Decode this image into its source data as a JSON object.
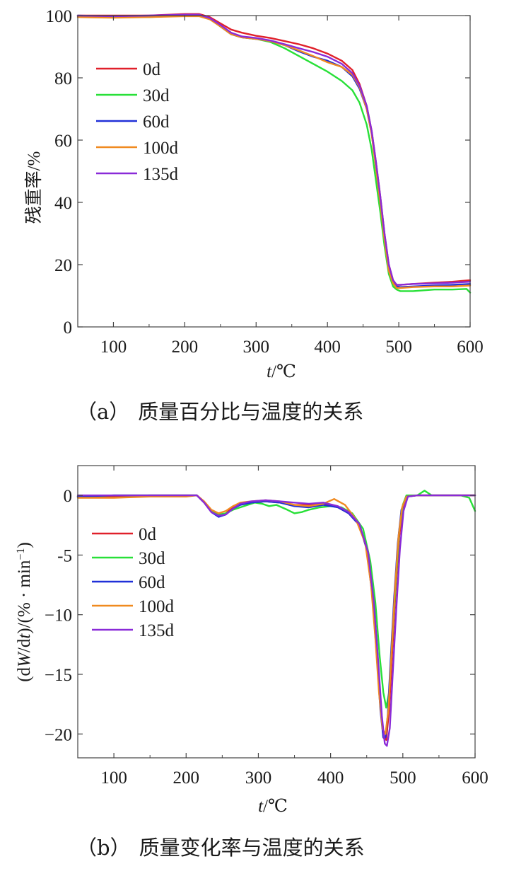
{
  "figure": {
    "panels": [
      {
        "caption_letter": "（a）",
        "caption_text": "质量百分比与温度的关系"
      },
      {
        "caption_letter": "（b）",
        "caption_text": "质量变化率与温度的关系"
      }
    ]
  },
  "chart_data": [
    {
      "type": "line",
      "xlabel_italic": "t",
      "xlabel_rest": "/℃",
      "ylabel": "残重率/%",
      "xlim": [
        50,
        600
      ],
      "ylim": [
        0,
        100
      ],
      "xticks": [
        100,
        200,
        300,
        400,
        500,
        600
      ],
      "yticks": [
        0,
        20,
        40,
        60,
        80,
        100
      ],
      "legend_position": "upper-left",
      "series": [
        {
          "name": "0d",
          "color": "#e0202a",
          "x": [
            50,
            100,
            150,
            200,
            220,
            235,
            250,
            265,
            280,
            300,
            320,
            340,
            360,
            380,
            400,
            420,
            435,
            445,
            455,
            462,
            468,
            474,
            480,
            486,
            492,
            497,
            502,
            520,
            550,
            575,
            600
          ],
          "y": [
            100,
            100,
            100,
            100.5,
            100.5,
            99.5,
            97.5,
            95.5,
            94.5,
            93.5,
            92.8,
            91.8,
            90.8,
            89.5,
            87.8,
            85.5,
            82.5,
            78,
            71,
            63,
            53,
            42,
            30,
            20,
            15,
            13.5,
            13.5,
            13.8,
            14.2,
            14.5,
            15
          ]
        },
        {
          "name": "30d",
          "color": "#28e038",
          "x": [
            50,
            100,
            150,
            200,
            220,
            235,
            250,
            265,
            280,
            300,
            320,
            340,
            360,
            380,
            400,
            420,
            435,
            445,
            455,
            462,
            468,
            474,
            480,
            486,
            492,
            497,
            502,
            520,
            550,
            575,
            595,
            600
          ],
          "y": [
            100,
            99.5,
            99.5,
            100,
            100,
            99,
            96.5,
            94,
            93,
            92.5,
            91.5,
            89.5,
            87,
            84.5,
            82,
            79,
            76,
            72,
            65,
            57,
            47,
            37,
            26,
            17,
            13,
            12,
            11.5,
            11.5,
            12,
            12,
            12.2,
            11
          ]
        },
        {
          "name": "60d",
          "color": "#2030d8",
          "x": [
            50,
            100,
            150,
            200,
            220,
            235,
            250,
            265,
            280,
            300,
            320,
            340,
            360,
            380,
            400,
            420,
            435,
            445,
            455,
            462,
            468,
            474,
            480,
            486,
            492,
            497,
            502,
            520,
            550,
            575,
            600
          ],
          "y": [
            99.8,
            99.8,
            99.8,
            100,
            100,
            99,
            96.5,
            94,
            93,
            92.5,
            91.8,
            90.5,
            88.5,
            86.8,
            85.5,
            83.5,
            80.5,
            76.5,
            70,
            62,
            52,
            41,
            29,
            19,
            14.5,
            13,
            12.8,
            13,
            13.3,
            13.5,
            13.8
          ]
        },
        {
          "name": "100d",
          "color": "#f08a20",
          "x": [
            50,
            100,
            150,
            200,
            220,
            235,
            250,
            265,
            280,
            300,
            320,
            340,
            360,
            380,
            400,
            420,
            435,
            445,
            455,
            462,
            468,
            474,
            480,
            486,
            492,
            497,
            502,
            520,
            550,
            575,
            600
          ],
          "y": [
            99.5,
            99.3,
            99.5,
            99.8,
            99.8,
            98.8,
            96.5,
            94,
            93,
            92.5,
            91.8,
            90.5,
            88.8,
            87,
            85,
            83.5,
            81,
            77,
            70,
            62,
            51,
            40,
            28,
            18,
            14,
            12.5,
            12.5,
            12.8,
            13,
            13,
            13.3
          ]
        },
        {
          "name": "135d",
          "color": "#8a2ad8",
          "x": [
            50,
            100,
            150,
            200,
            220,
            235,
            250,
            265,
            280,
            300,
            320,
            340,
            360,
            380,
            400,
            420,
            435,
            445,
            455,
            462,
            468,
            474,
            480,
            486,
            492,
            497,
            502,
            520,
            550,
            575,
            600
          ],
          "y": [
            100,
            99.8,
            100,
            100.3,
            100.3,
            99.2,
            97,
            94.5,
            93.3,
            92.8,
            92,
            90.8,
            89.5,
            88.3,
            86.8,
            84.5,
            81.5,
            77.5,
            71,
            63,
            53,
            42,
            30,
            20,
            15,
            13.5,
            13.5,
            13.8,
            14,
            14.2,
            14.5
          ]
        }
      ]
    },
    {
      "type": "line",
      "xlabel_italic": "t",
      "xlabel_rest": "/℃",
      "ylabel_parts": [
        {
          "t": "(d",
          "i": false
        },
        {
          "t": "W",
          "i": true
        },
        {
          "t": "/d",
          "i": false
        },
        {
          "t": "t",
          "i": true
        },
        {
          "t": ")/(% · min",
          "i": false
        },
        {
          "t": "−1",
          "i": false,
          "sup": true
        },
        {
          "t": ")",
          "i": false
        }
      ],
      "xlim": [
        50,
        600
      ],
      "ylim": [
        -22,
        2.5
      ],
      "xticks": [
        100,
        200,
        300,
        400,
        500,
        600
      ],
      "yticks": [
        0,
        -5,
        -10,
        -15,
        -20
      ],
      "ytick_labels": [
        "0",
        "-5",
        "−10",
        "−15",
        "−20"
      ],
      "legend_position": "middle-left",
      "series": [
        {
          "name": "0d",
          "color": "#e0202a",
          "x": [
            50,
            100,
            150,
            200,
            215,
            225,
            235,
            245,
            255,
            265,
            275,
            290,
            310,
            330,
            350,
            370,
            390,
            410,
            425,
            440,
            450,
            458,
            464,
            469,
            473,
            477,
            481,
            485,
            490,
            495,
            500,
            505,
            520,
            550,
            580,
            600
          ],
          "y": [
            -0.1,
            -0.1,
            0,
            0,
            0,
            -0.6,
            -1.4,
            -1.7,
            -1.5,
            -1.0,
            -0.7,
            -0.6,
            -0.5,
            -0.6,
            -0.8,
            -0.8,
            -0.7,
            -1.0,
            -1.5,
            -2.5,
            -4.5,
            -8,
            -13,
            -17.5,
            -20.3,
            -20.5,
            -18,
            -13.5,
            -8,
            -3.5,
            -1,
            -0.1,
            0,
            0,
            0,
            0
          ]
        },
        {
          "name": "30d",
          "color": "#28e038",
          "x": [
            50,
            100,
            150,
            200,
            215,
            225,
            235,
            245,
            255,
            265,
            275,
            285,
            295,
            305,
            315,
            325,
            340,
            350,
            360,
            370,
            385,
            400,
            415,
            430,
            445,
            455,
            462,
            468,
            473,
            477,
            481,
            485,
            490,
            495,
            500,
            505,
            520,
            530,
            540,
            560,
            580,
            592,
            600
          ],
          "y": [
            -0.1,
            0,
            0,
            0,
            0,
            -0.6,
            -1.3,
            -1.6,
            -1.5,
            -1.2,
            -1.0,
            -0.8,
            -0.6,
            -0.7,
            -0.9,
            -0.8,
            -1.2,
            -1.5,
            -1.4,
            -1.2,
            -1.0,
            -0.9,
            -1.0,
            -1.5,
            -2.8,
            -5.5,
            -9,
            -13.5,
            -16.5,
            -17.8,
            -16.5,
            -12.5,
            -7.5,
            -3,
            -0.8,
            0,
            0,
            0.4,
            0,
            0,
            0,
            -0.2,
            -1.3
          ]
        },
        {
          "name": "60d",
          "color": "#2030d8",
          "x": [
            50,
            100,
            150,
            200,
            215,
            225,
            235,
            245,
            255,
            265,
            275,
            290,
            310,
            330,
            350,
            370,
            390,
            410,
            425,
            440,
            450,
            458,
            464,
            469,
            473,
            476,
            479,
            483,
            488,
            493,
            498,
            505,
            520,
            550,
            580,
            600
          ],
          "y": [
            -0.1,
            0,
            0,
            0,
            0,
            -0.6,
            -1.4,
            -1.8,
            -1.6,
            -1.1,
            -0.8,
            -0.6,
            -0.5,
            -0.6,
            -0.9,
            -1.0,
            -0.8,
            -1.0,
            -1.5,
            -2.5,
            -4.5,
            -8.5,
            -13.5,
            -18,
            -20.3,
            -20.3,
            -18.5,
            -14,
            -8.5,
            -4,
            -1.2,
            -0.1,
            0,
            0,
            0,
            0
          ]
        },
        {
          "name": "100d",
          "color": "#f08a20",
          "x": [
            50,
            100,
            150,
            200,
            215,
            225,
            235,
            245,
            255,
            265,
            275,
            290,
            310,
            330,
            350,
            370,
            390,
            405,
            420,
            435,
            448,
            456,
            462,
            467,
            472,
            476,
            480,
            484,
            489,
            494,
            499,
            505,
            520,
            550,
            580,
            600
          ],
          "y": [
            -0.2,
            -0.2,
            -0.1,
            -0.1,
            0,
            -0.5,
            -1.2,
            -1.5,
            -1.3,
            -0.9,
            -0.6,
            -0.5,
            -0.4,
            -0.5,
            -0.8,
            -0.9,
            -0.7,
            -0.3,
            -0.8,
            -2.0,
            -4.0,
            -7.5,
            -12,
            -16.5,
            -19.6,
            -20.0,
            -18,
            -13.5,
            -8,
            -3.5,
            -1,
            -0.1,
            0,
            0,
            0,
            0
          ]
        },
        {
          "name": "135d",
          "color": "#8a2ad8",
          "x": [
            50,
            100,
            150,
            200,
            215,
            225,
            235,
            245,
            255,
            265,
            275,
            290,
            310,
            330,
            350,
            370,
            390,
            410,
            425,
            440,
            452,
            460,
            466,
            471,
            475,
            478,
            482,
            486,
            491,
            496,
            501,
            507,
            520,
            550,
            580,
            600
          ],
          "y": [
            0,
            0,
            0,
            0,
            0,
            -0.6,
            -1.4,
            -1.7,
            -1.6,
            -1.1,
            -0.7,
            -0.5,
            -0.4,
            -0.5,
            -0.6,
            -0.7,
            -0.6,
            -0.9,
            -1.4,
            -2.4,
            -4.8,
            -9,
            -14,
            -18.5,
            -20.8,
            -21.0,
            -19.5,
            -15,
            -9.5,
            -4.5,
            -1.3,
            -0.1,
            0,
            0,
            0,
            0
          ]
        }
      ]
    }
  ]
}
